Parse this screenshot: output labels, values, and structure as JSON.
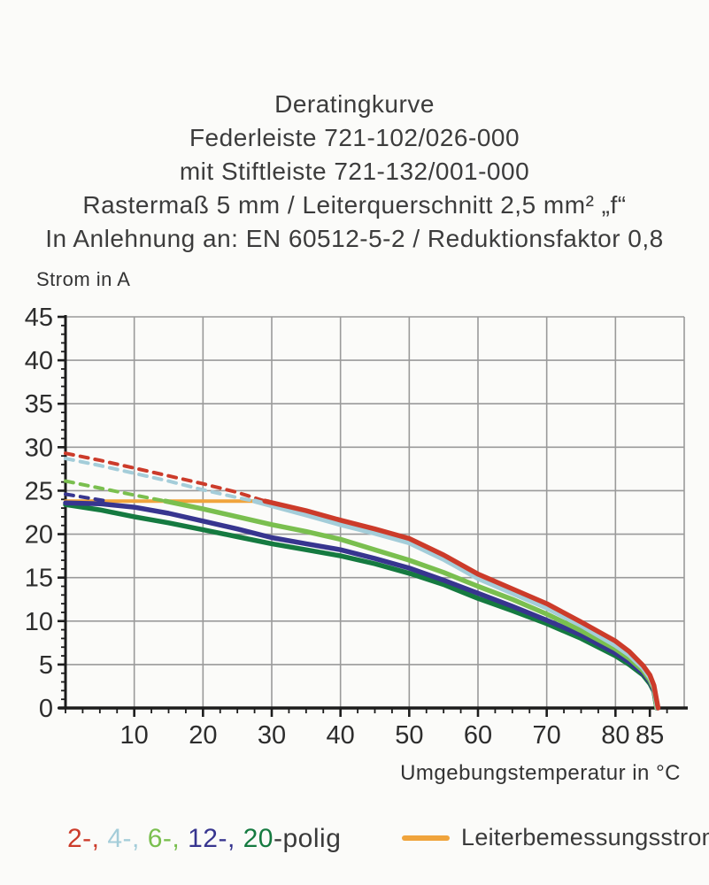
{
  "header": {
    "lines": [
      "Deratingkurve",
      "Federleiste 721-102/026-000",
      "mit Stiftleiste 721-132/001-000",
      "Rastermaß 5 mm / Leiterquerschnitt 2,5 mm² „f“",
      "In Anlehnung an: EN 60512-5-2 / Reduktionsfaktor 0,8"
    ]
  },
  "chart_data": {
    "type": "line",
    "title": "Deratingkurve",
    "xlabel": "Umgebungstemperatur in °C",
    "ylabel": "Strom in A",
    "xlim": [
      0,
      90
    ],
    "ylim": [
      0,
      45
    ],
    "x_ticks": [
      10,
      20,
      30,
      40,
      50,
      60,
      70,
      80,
      85
    ],
    "y_ticks": [
      0,
      5,
      10,
      15,
      20,
      25,
      30,
      35,
      40,
      45
    ],
    "x_minor_step": 2.5,
    "y_minor_step": 1,
    "grid": {
      "x_step": 10,
      "y_step": 5,
      "color": "#9a9a9a",
      "axis_color": "#1c1c1c"
    },
    "rated_line": {
      "label": "Leiterbemessungsstrom",
      "color": "#f0a43c",
      "value_a": 23.8,
      "points": [
        [
          0,
          23.8
        ],
        [
          29.5,
          23.8
        ]
      ]
    },
    "series": [
      {
        "name": "20-polig",
        "color": "#157a40",
        "dashed_points": [],
        "solid_points": [
          [
            0,
            23.4
          ],
          [
            5,
            22.8
          ],
          [
            10,
            22.0
          ],
          [
            15,
            21.3
          ],
          [
            20,
            20.5
          ],
          [
            25,
            19.7
          ],
          [
            30,
            18.9
          ],
          [
            35,
            18.2
          ],
          [
            40,
            17.5
          ],
          [
            45,
            16.6
          ],
          [
            50,
            15.5
          ],
          [
            55,
            14.2
          ],
          [
            60,
            12.6
          ],
          [
            65,
            11.2
          ],
          [
            70,
            9.7
          ],
          [
            75,
            8.0
          ],
          [
            80,
            6.0
          ],
          [
            82,
            5.0
          ],
          [
            84,
            3.8
          ],
          [
            85,
            2.8
          ],
          [
            85.6,
            1.9
          ],
          [
            86,
            0
          ]
        ]
      },
      {
        "name": "12-polig",
        "color": "#37358f",
        "dashed_points": [
          [
            0,
            24.6
          ],
          [
            3,
            24.2
          ],
          [
            6,
            23.8
          ]
        ],
        "solid_points": [
          [
            0,
            23.6
          ],
          [
            5,
            23.5
          ],
          [
            10,
            23.1
          ],
          [
            15,
            22.4
          ],
          [
            20,
            21.5
          ],
          [
            25,
            20.6
          ],
          [
            30,
            19.6
          ],
          [
            35,
            18.9
          ],
          [
            40,
            18.2
          ],
          [
            45,
            17.2
          ],
          [
            50,
            16.1
          ],
          [
            55,
            14.7
          ],
          [
            60,
            13.2
          ],
          [
            65,
            11.7
          ],
          [
            70,
            10.1
          ],
          [
            75,
            8.4
          ],
          [
            80,
            6.3
          ],
          [
            82,
            5.3
          ],
          [
            84,
            4.0
          ],
          [
            85,
            3.0
          ],
          [
            85.6,
            2.0
          ],
          [
            86,
            0
          ]
        ]
      },
      {
        "name": "6-polig",
        "color": "#7abf4f",
        "dashed_points": [
          [
            0,
            26.1
          ],
          [
            5,
            25.3
          ],
          [
            10,
            24.5
          ],
          [
            14.5,
            23.8
          ]
        ],
        "solid_points": [
          [
            14.5,
            23.8
          ],
          [
            20,
            22.9
          ],
          [
            25,
            22.0
          ],
          [
            30,
            21.1
          ],
          [
            35,
            20.3
          ],
          [
            40,
            19.4
          ],
          [
            45,
            18.2
          ],
          [
            50,
            17.0
          ],
          [
            55,
            15.6
          ],
          [
            60,
            14.0
          ],
          [
            65,
            12.5
          ],
          [
            70,
            10.8
          ],
          [
            75,
            8.9
          ],
          [
            80,
            6.8
          ],
          [
            82,
            5.7
          ],
          [
            84,
            4.3
          ],
          [
            85,
            3.2
          ],
          [
            85.6,
            2.2
          ],
          [
            86,
            0
          ]
        ]
      },
      {
        "name": "4-polig",
        "color": "#a4cdd9",
        "dashed_points": [
          [
            0,
            28.7
          ],
          [
            5,
            27.9
          ],
          [
            10,
            27.0
          ],
          [
            15,
            26.1
          ],
          [
            20,
            25.1
          ],
          [
            25,
            24.2
          ],
          [
            27.5,
            23.8
          ]
        ],
        "solid_points": [
          [
            27.5,
            23.8
          ],
          [
            35,
            22.2
          ],
          [
            40,
            21.1
          ],
          [
            45,
            20.1
          ],
          [
            50,
            19.0
          ],
          [
            55,
            17.1
          ],
          [
            60,
            14.9
          ],
          [
            65,
            13.2
          ],
          [
            70,
            11.5
          ],
          [
            75,
            9.5
          ],
          [
            80,
            7.2
          ],
          [
            82,
            6.1
          ],
          [
            84,
            4.6
          ],
          [
            85,
            3.5
          ],
          [
            85.6,
            2.4
          ],
          [
            86.1,
            0
          ]
        ]
      },
      {
        "name": "2-polig",
        "color": "#cc3b2a",
        "dashed_points": [
          [
            0,
            29.3
          ],
          [
            5,
            28.5
          ],
          [
            10,
            27.6
          ],
          [
            15,
            26.7
          ],
          [
            20,
            25.8
          ],
          [
            25,
            24.8
          ],
          [
            29,
            23.8
          ]
        ],
        "solid_points": [
          [
            29,
            23.8
          ],
          [
            35,
            22.7
          ],
          [
            40,
            21.6
          ],
          [
            45,
            20.6
          ],
          [
            50,
            19.5
          ],
          [
            55,
            17.6
          ],
          [
            60,
            15.4
          ],
          [
            65,
            13.7
          ],
          [
            70,
            12.0
          ],
          [
            75,
            9.9
          ],
          [
            80,
            7.7
          ],
          [
            82,
            6.5
          ],
          [
            84,
            4.9
          ],
          [
            85,
            3.8
          ],
          [
            85.6,
            2.6
          ],
          [
            86.2,
            0
          ]
        ]
      }
    ]
  },
  "legend": {
    "pole_items": [
      {
        "text": "2-,",
        "color": "#cc3b2a"
      },
      {
        "text": "4-,",
        "color": "#a4cdd9"
      },
      {
        "text": "6-,",
        "color": "#7abf4f"
      },
      {
        "text": "12-,",
        "color": "#37358f"
      },
      {
        "text": "20",
        "color": "#157a40"
      }
    ],
    "suffix": "-polig",
    "rated_label": "Leiterbemessungsstrom",
    "rated_color": "#f0a43c"
  }
}
